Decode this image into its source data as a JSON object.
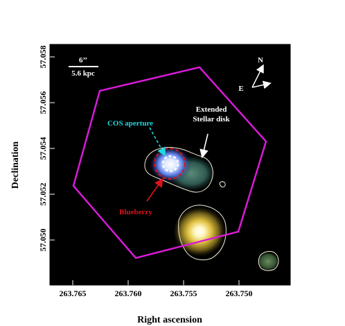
{
  "figure": {
    "xlabel": "Right ascension",
    "ylabel": "Declination",
    "x_ticks": [
      "263.765",
      "263.760",
      "263.755",
      "263.750"
    ],
    "y_ticks": [
      "57.058",
      "57.056",
      "57.054",
      "57.052",
      "57.050"
    ],
    "scale_bar": {
      "angle": "6’’",
      "physical": "5.6 kpc"
    },
    "compass": {
      "north": "N",
      "east": "E"
    },
    "annotations": {
      "cos_aperture": "COS aperture",
      "extended_disk_line1": "Extended",
      "extended_disk_line2": "Stellar disk",
      "blueberry": "Blueberry"
    },
    "colors": {
      "background": "#000000",
      "footprint": "#d81ad8",
      "cos_label": "#1fd8e0",
      "blueberry_label": "#e0101a",
      "contour": "#f2ecd6",
      "annotation_white": "#ffffff"
    }
  }
}
